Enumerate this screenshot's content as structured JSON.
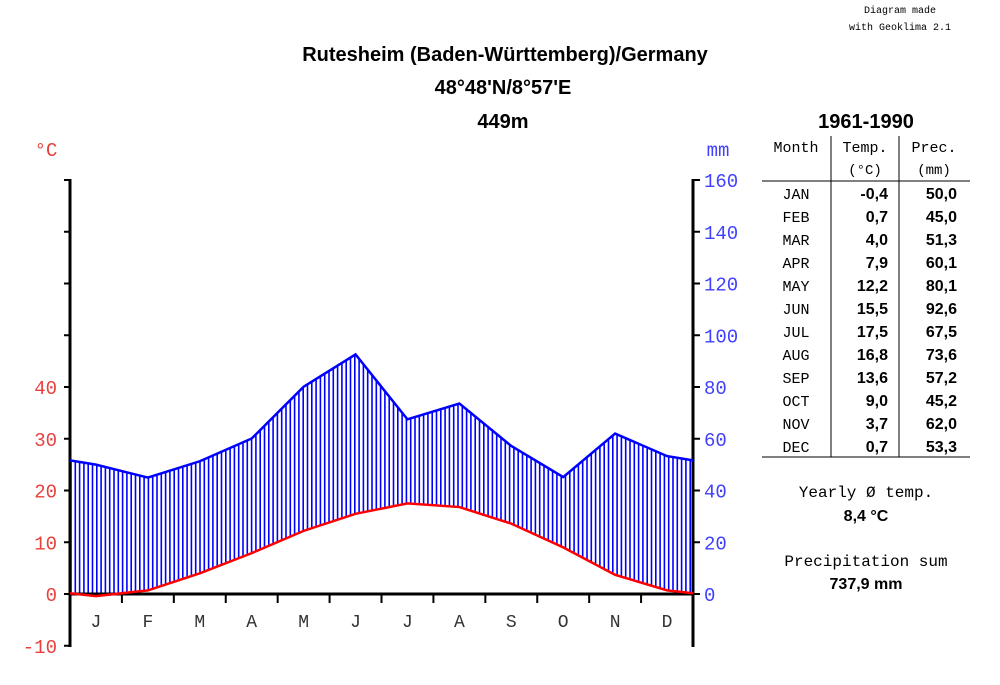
{
  "credit": [
    "Diagram made",
    "with Geoklima 2.1"
  ],
  "title": {
    "line1": "Rutesheim (Baden-Württemberg)/Germany",
    "line2": "48°48'N/8°57'E",
    "line3": "449m"
  },
  "colors": {
    "temperature": "#ff0000",
    "precipitation": "#0000ff",
    "temp_axis_text": "#e8403c",
    "prec_axis_text": "#4040ff"
  },
  "chart_data": {
    "type": "line",
    "categories": [
      "J",
      "F",
      "M",
      "A",
      "M",
      "J",
      "J",
      "A",
      "S",
      "O",
      "N",
      "D"
    ],
    "series": [
      {
        "name": "Temp.",
        "unit": "°C",
        "values": [
          -0.4,
          0.7,
          4.0,
          7.9,
          12.2,
          15.5,
          17.5,
          16.8,
          13.6,
          9.0,
          3.7,
          0.7
        ]
      },
      {
        "name": "Prec.",
        "unit": "mm",
        "values": [
          50.0,
          45.0,
          51.3,
          60.1,
          80.1,
          92.6,
          67.5,
          73.6,
          57.2,
          45.2,
          62.0,
          53.3
        ]
      }
    ],
    "left_axis": {
      "label": "°C",
      "ticks": [
        "-10",
        "0",
        "10",
        "20",
        "30",
        "40"
      ],
      "range": [
        -10,
        80
      ]
    },
    "right_axis": {
      "label": "mm",
      "ticks": [
        "0",
        "20",
        "40",
        "60",
        "80",
        "100",
        "120",
        "140",
        "160"
      ],
      "range": [
        0,
        160
      ]
    },
    "hatched_area": "humid period between temperature and precipitation curves"
  },
  "table": {
    "period": "1961-1990",
    "headers": {
      "month": "Month",
      "temp": "Temp.",
      "temp_unit": "(°C)",
      "prec": "Prec.",
      "prec_unit": "(mm)"
    },
    "rows": [
      {
        "month": "JAN",
        "temp": "-0,4",
        "prec": "50,0"
      },
      {
        "month": "FEB",
        "temp": "0,7",
        "prec": "45,0"
      },
      {
        "month": "MAR",
        "temp": "4,0",
        "prec": "51,3"
      },
      {
        "month": "APR",
        "temp": "7,9",
        "prec": "60,1"
      },
      {
        "month": "MAY",
        "temp": "12,2",
        "prec": "80,1"
      },
      {
        "month": "JUN",
        "temp": "15,5",
        "prec": "92,6"
      },
      {
        "month": "JUL",
        "temp": "17,5",
        "prec": "67,5"
      },
      {
        "month": "AUG",
        "temp": "16,8",
        "prec": "73,6"
      },
      {
        "month": "SEP",
        "temp": "13,6",
        "prec": "57,2"
      },
      {
        "month": "OCT",
        "temp": "9,0",
        "prec": "45,2"
      },
      {
        "month": "NOV",
        "temp": "3,7",
        "prec": "62,0"
      },
      {
        "month": "DEC",
        "temp": "0,7",
        "prec": "53,3"
      }
    ]
  },
  "summary": {
    "yearly_temp_label": "Yearly Ø temp.",
    "yearly_temp_value": "8,4 °C",
    "prec_sum_label": "Precipitation sum",
    "prec_sum_value": "737,9 mm"
  }
}
